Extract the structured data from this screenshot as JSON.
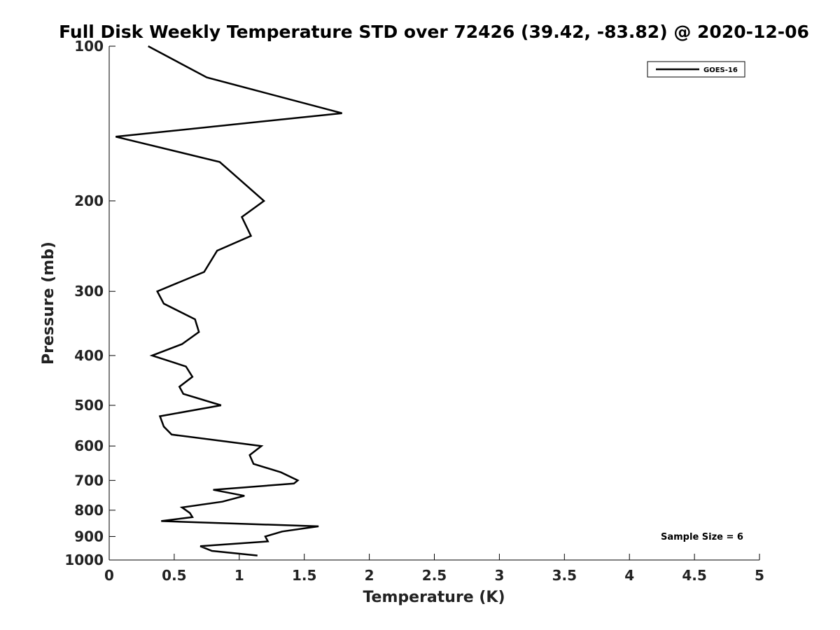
{
  "chart_data": {
    "type": "line",
    "title": "Full Disk Weekly Temperature STD over 72426 (39.42, -83.82) @ 2020-12-06",
    "xlabel": "Temperature (K)",
    "ylabel": "Pressure (mb)",
    "xlim": [
      0,
      5
    ],
    "ylim": [
      100,
      1000
    ],
    "y_scale": "log",
    "y_inverted": true,
    "x_ticks": [
      "0",
      "0.5",
      "1",
      "1.5",
      "2",
      "2.5",
      "3",
      "3.5",
      "4",
      "4.5",
      "5"
    ],
    "x_tick_values": [
      0,
      0.5,
      1,
      1.5,
      2,
      2.5,
      3,
      3.5,
      4,
      4.5,
      5
    ],
    "y_ticks": [
      "100",
      "200",
      "300",
      "400",
      "500",
      "600",
      "700",
      "800",
      "900",
      "1000"
    ],
    "y_tick_values": [
      100,
      200,
      300,
      400,
      500,
      600,
      700,
      800,
      900,
      1000
    ],
    "grid": false,
    "legend_position": "top-right",
    "annotation": "Sample Size = 6",
    "line_color": "#000000",
    "series": [
      {
        "name": "GOES-16",
        "x": [
          0.3,
          0.75,
          1.79,
          0.05,
          0.85,
          1.19,
          1.02,
          1.09,
          0.83,
          0.73,
          0.37,
          0.42,
          0.66,
          0.69,
          0.56,
          0.33,
          0.59,
          0.64,
          0.54,
          0.57,
          0.86,
          0.39,
          0.42,
          0.48,
          1.17,
          1.08,
          1.11,
          1.32,
          1.45,
          1.42,
          0.8,
          1.04,
          0.87,
          0.56,
          0.62,
          0.64,
          0.4,
          1.61,
          1.33,
          1.2,
          1.22,
          0.7,
          0.79,
          1.14
        ],
        "y": [
          100,
          115,
          135,
          150,
          168,
          200,
          215,
          234,
          250,
          275,
          300,
          317,
          340,
          360,
          380,
          400,
          420,
          440,
          460,
          475,
          500,
          525,
          550,
          570,
          600,
          625,
          650,
          675,
          700,
          710,
          730,
          750,
          770,
          790,
          810,
          825,
          840,
          860,
          880,
          900,
          920,
          940,
          960,
          980
        ]
      }
    ]
  }
}
